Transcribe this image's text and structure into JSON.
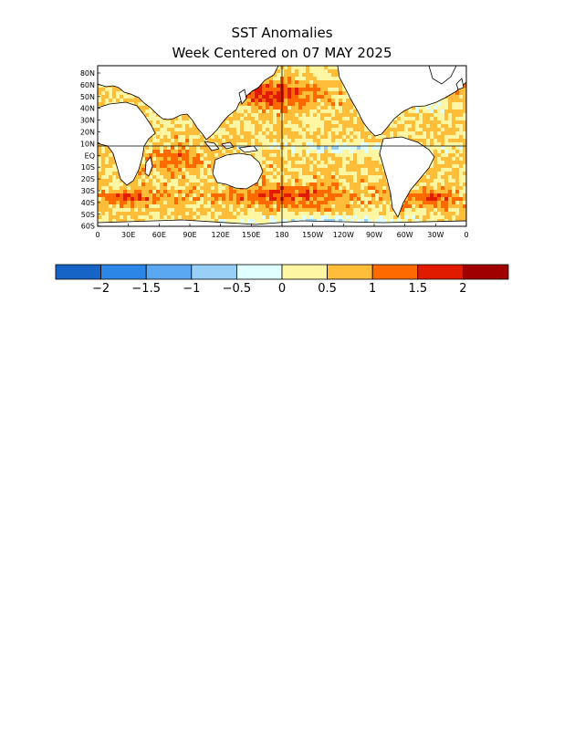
{
  "title_line1": "SST Anomalies",
  "title_line2": "Week Centered on 07 MAY 2025",
  "map": {
    "lat_labels": [
      "80N",
      "60N",
      "50N",
      "40N",
      "30N",
      "20N",
      "10N",
      "EQ",
      "10S",
      "20S",
      "30S",
      "40S",
      "50S",
      "60S"
    ],
    "lon_labels": [
      "0",
      "30E",
      "60E",
      "90E",
      "120E",
      "150E",
      "180",
      "150W",
      "120W",
      "90W",
      "60W",
      "30W",
      "0"
    ]
  },
  "colorbar": {
    "colors": [
      "#1764c7",
      "#2b86e8",
      "#5aa8f2",
      "#97cff7",
      "#e0ffff",
      "#fff6a3",
      "#ffbd3a",
      "#ff6a00",
      "#e01b00",
      "#a00000"
    ],
    "tick_labels": [
      "−2",
      "−1.5",
      "−1",
      "−0.5",
      "0",
      "0.5",
      "1",
      "1.5",
      "2"
    ]
  },
  "legend_colors": {
    "land": "#ffffff",
    "outline": "#000000"
  }
}
